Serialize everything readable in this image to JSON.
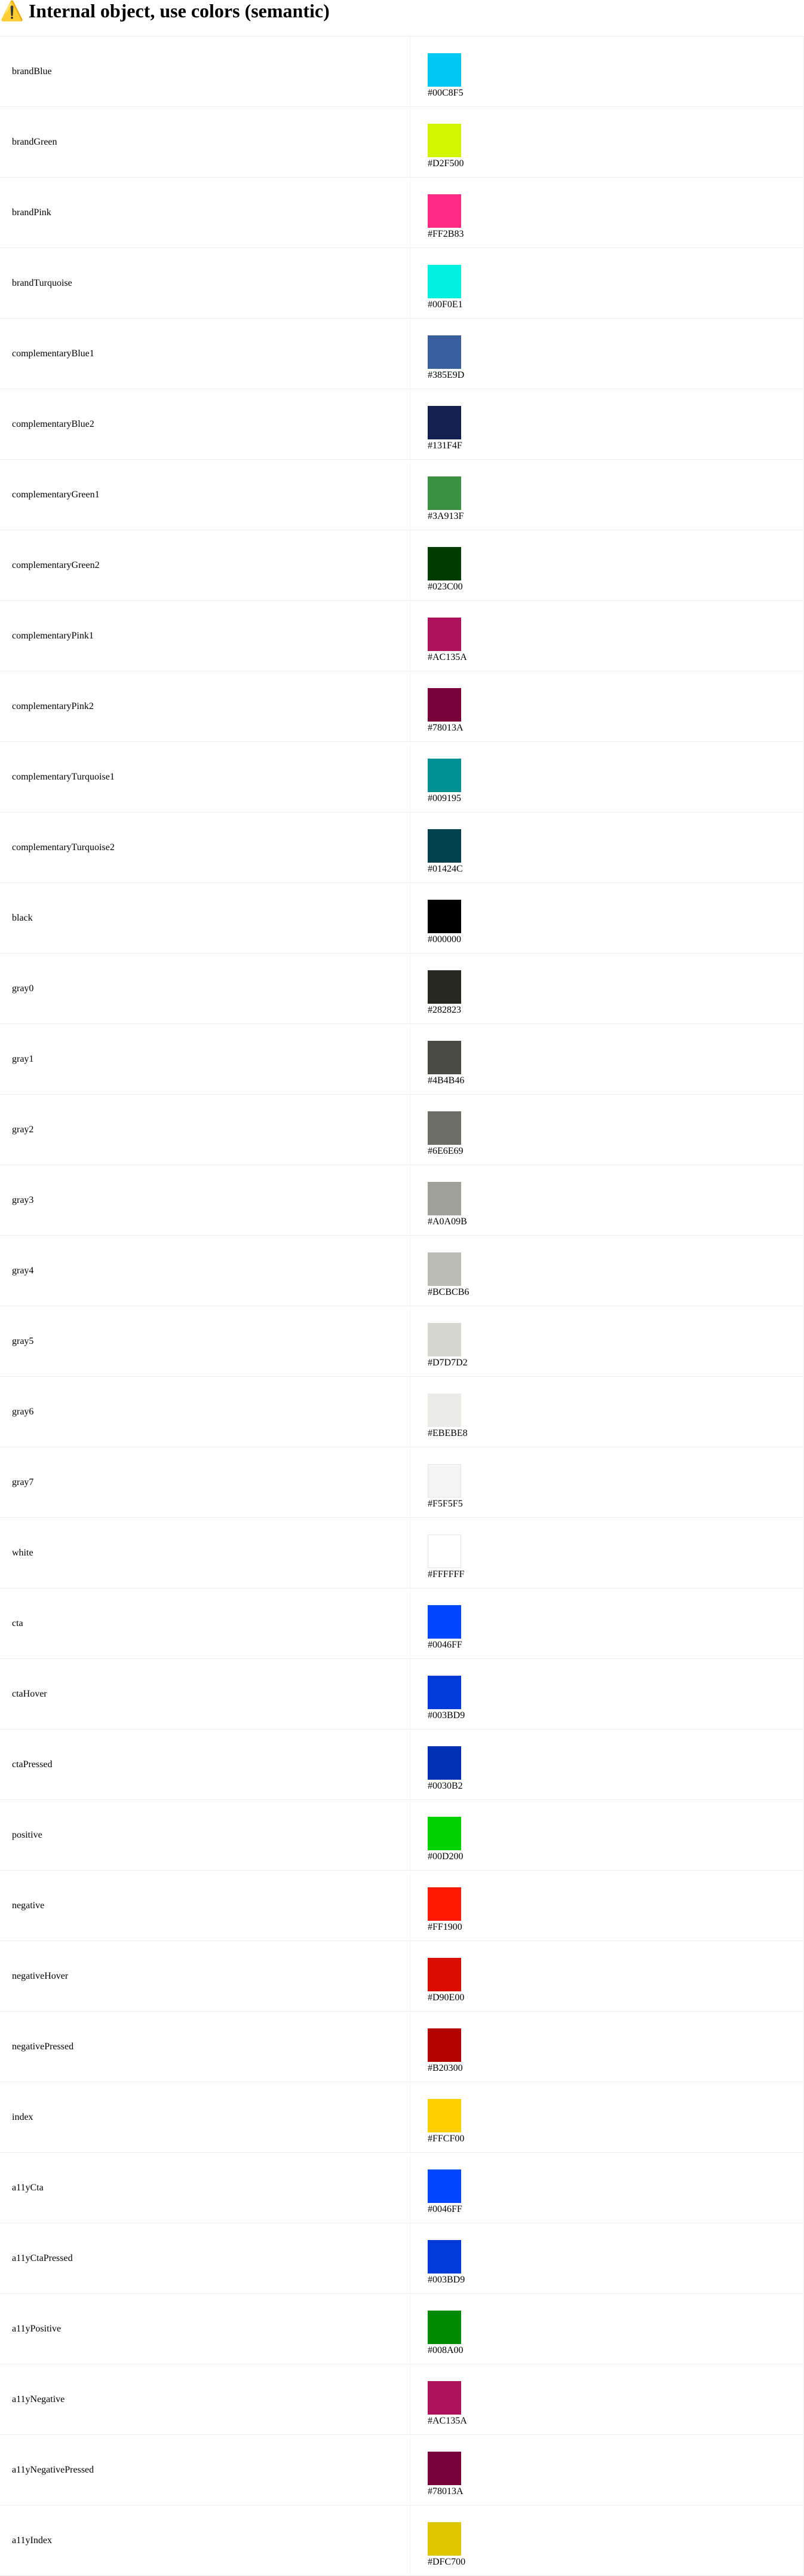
{
  "heading": "⚠️ Internal object, use colors (semantic)",
  "colors": [
    {
      "name": "brandBlue",
      "hex": "#00C8F5"
    },
    {
      "name": "brandGreen",
      "hex": "#D2F500"
    },
    {
      "name": "brandPink",
      "hex": "#FF2B83"
    },
    {
      "name": "brandTurquoise",
      "hex": "#00F0E1"
    },
    {
      "name": "complementaryBlue1",
      "hex": "#385E9D"
    },
    {
      "name": "complementaryBlue2",
      "hex": "#131F4F"
    },
    {
      "name": "complementaryGreen1",
      "hex": "#3A913F"
    },
    {
      "name": "complementaryGreen2",
      "hex": "#023C00"
    },
    {
      "name": "complementaryPink1",
      "hex": "#AC135A"
    },
    {
      "name": "complementaryPink2",
      "hex": "#78013A"
    },
    {
      "name": "complementaryTurquoise1",
      "hex": "#009195"
    },
    {
      "name": "complementaryTurquoise2",
      "hex": "#01424C"
    },
    {
      "name": "black",
      "hex": "#000000"
    },
    {
      "name": "gray0",
      "hex": "#282823"
    },
    {
      "name": "gray1",
      "hex": "#4B4B46"
    },
    {
      "name": "gray2",
      "hex": "#6E6E69"
    },
    {
      "name": "gray3",
      "hex": "#A0A09B"
    },
    {
      "name": "gray4",
      "hex": "#BCBCB6"
    },
    {
      "name": "gray5",
      "hex": "#D7D7D2"
    },
    {
      "name": "gray6",
      "hex": "#EBEBE8"
    },
    {
      "name": "gray7",
      "hex": "#F5F5F5"
    },
    {
      "name": "white",
      "hex": "#FFFFFF"
    },
    {
      "name": "cta",
      "hex": "#0046FF"
    },
    {
      "name": "ctaHover",
      "hex": "#003BD9"
    },
    {
      "name": "ctaPressed",
      "hex": "#0030B2"
    },
    {
      "name": "positive",
      "hex": "#00D200"
    },
    {
      "name": "negative",
      "hex": "#FF1900"
    },
    {
      "name": "negativeHover",
      "hex": "#D90E00"
    },
    {
      "name": "negativePressed",
      "hex": "#B20300"
    },
    {
      "name": "index",
      "hex": "#FFCF00"
    },
    {
      "name": "a11yCta",
      "hex": "#0046FF"
    },
    {
      "name": "a11yCtaPressed",
      "hex": "#003BD9"
    },
    {
      "name": "a11yPositive",
      "hex": "#008A00"
    },
    {
      "name": "a11yNegative",
      "hex": "#AC135A"
    },
    {
      "name": "a11yNegativePressed",
      "hex": "#78013A"
    },
    {
      "name": "a11yIndex",
      "hex": "#DFC700"
    }
  ]
}
